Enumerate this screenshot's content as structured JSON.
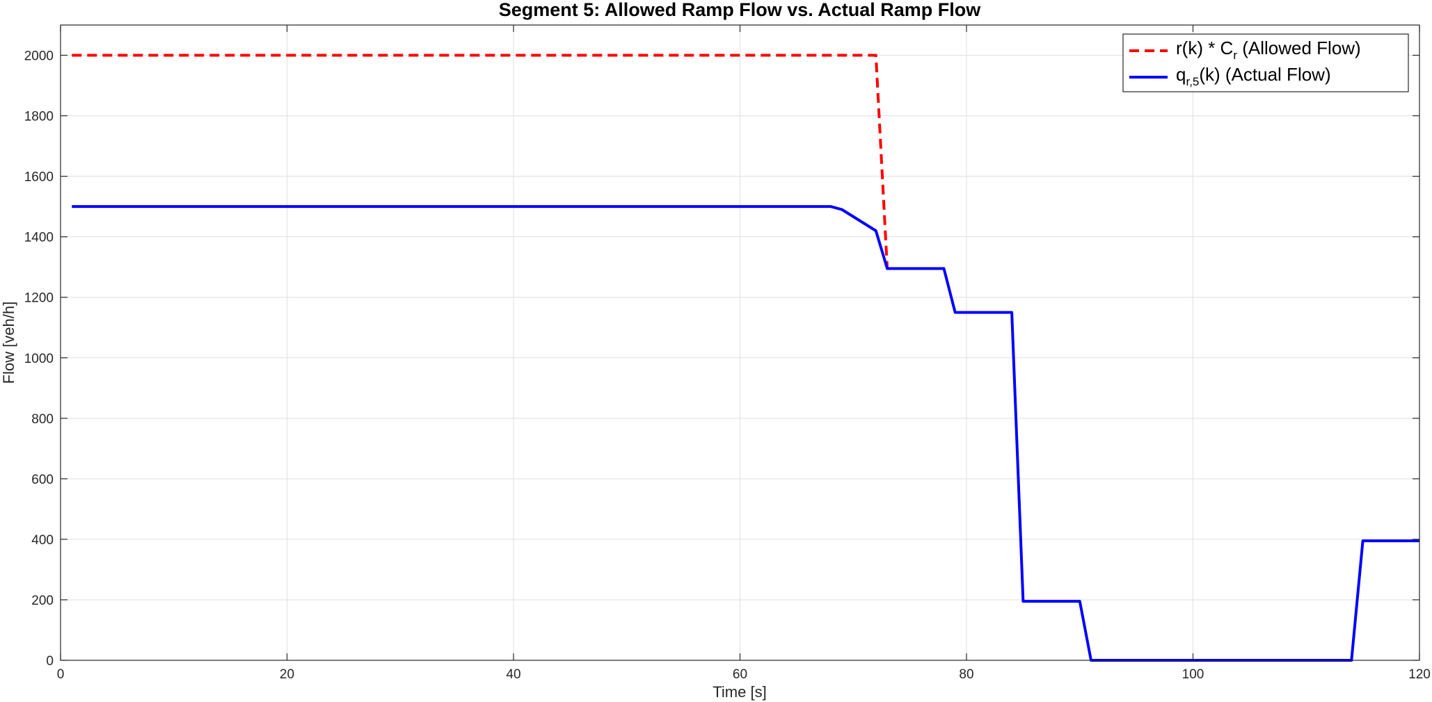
{
  "chart_data": {
    "type": "line",
    "title": "Segment 5: Allowed Ramp Flow vs. Actual Ramp Flow",
    "xlabel": "Time [s]",
    "ylabel": "Flow [veh/h]",
    "xlim": [
      0,
      120
    ],
    "ylim": [
      0,
      2100
    ],
    "xticks": [
      0,
      20,
      40,
      60,
      80,
      100,
      120
    ],
    "yticks": [
      0,
      200,
      400,
      600,
      800,
      1000,
      1200,
      1400,
      1600,
      1800,
      2000
    ],
    "grid": true,
    "legend_position": "top-right",
    "series": [
      {
        "legend": {
          "main": "r(k)  *  C",
          "sub": "r",
          "suffix": "  (Allowed  Flow)"
        },
        "color": "#ff0000",
        "style": "dashed",
        "x": [
          1,
          72,
          73
        ],
        "y": [
          2000,
          2000,
          1295
        ]
      },
      {
        "legend": {
          "main": "q",
          "sub": "r,5",
          "suffix": "(k)  (Actual  Flow)"
        },
        "color": "#0000ff",
        "style": "solid",
        "x": [
          1,
          68,
          69,
          72,
          73,
          78,
          79,
          84,
          85,
          90,
          91,
          114,
          115,
          120
        ],
        "y": [
          1500,
          1500,
          1490,
          1420,
          1295,
          1295,
          1150,
          1150,
          195,
          195,
          0,
          0,
          395,
          395
        ]
      }
    ]
  }
}
